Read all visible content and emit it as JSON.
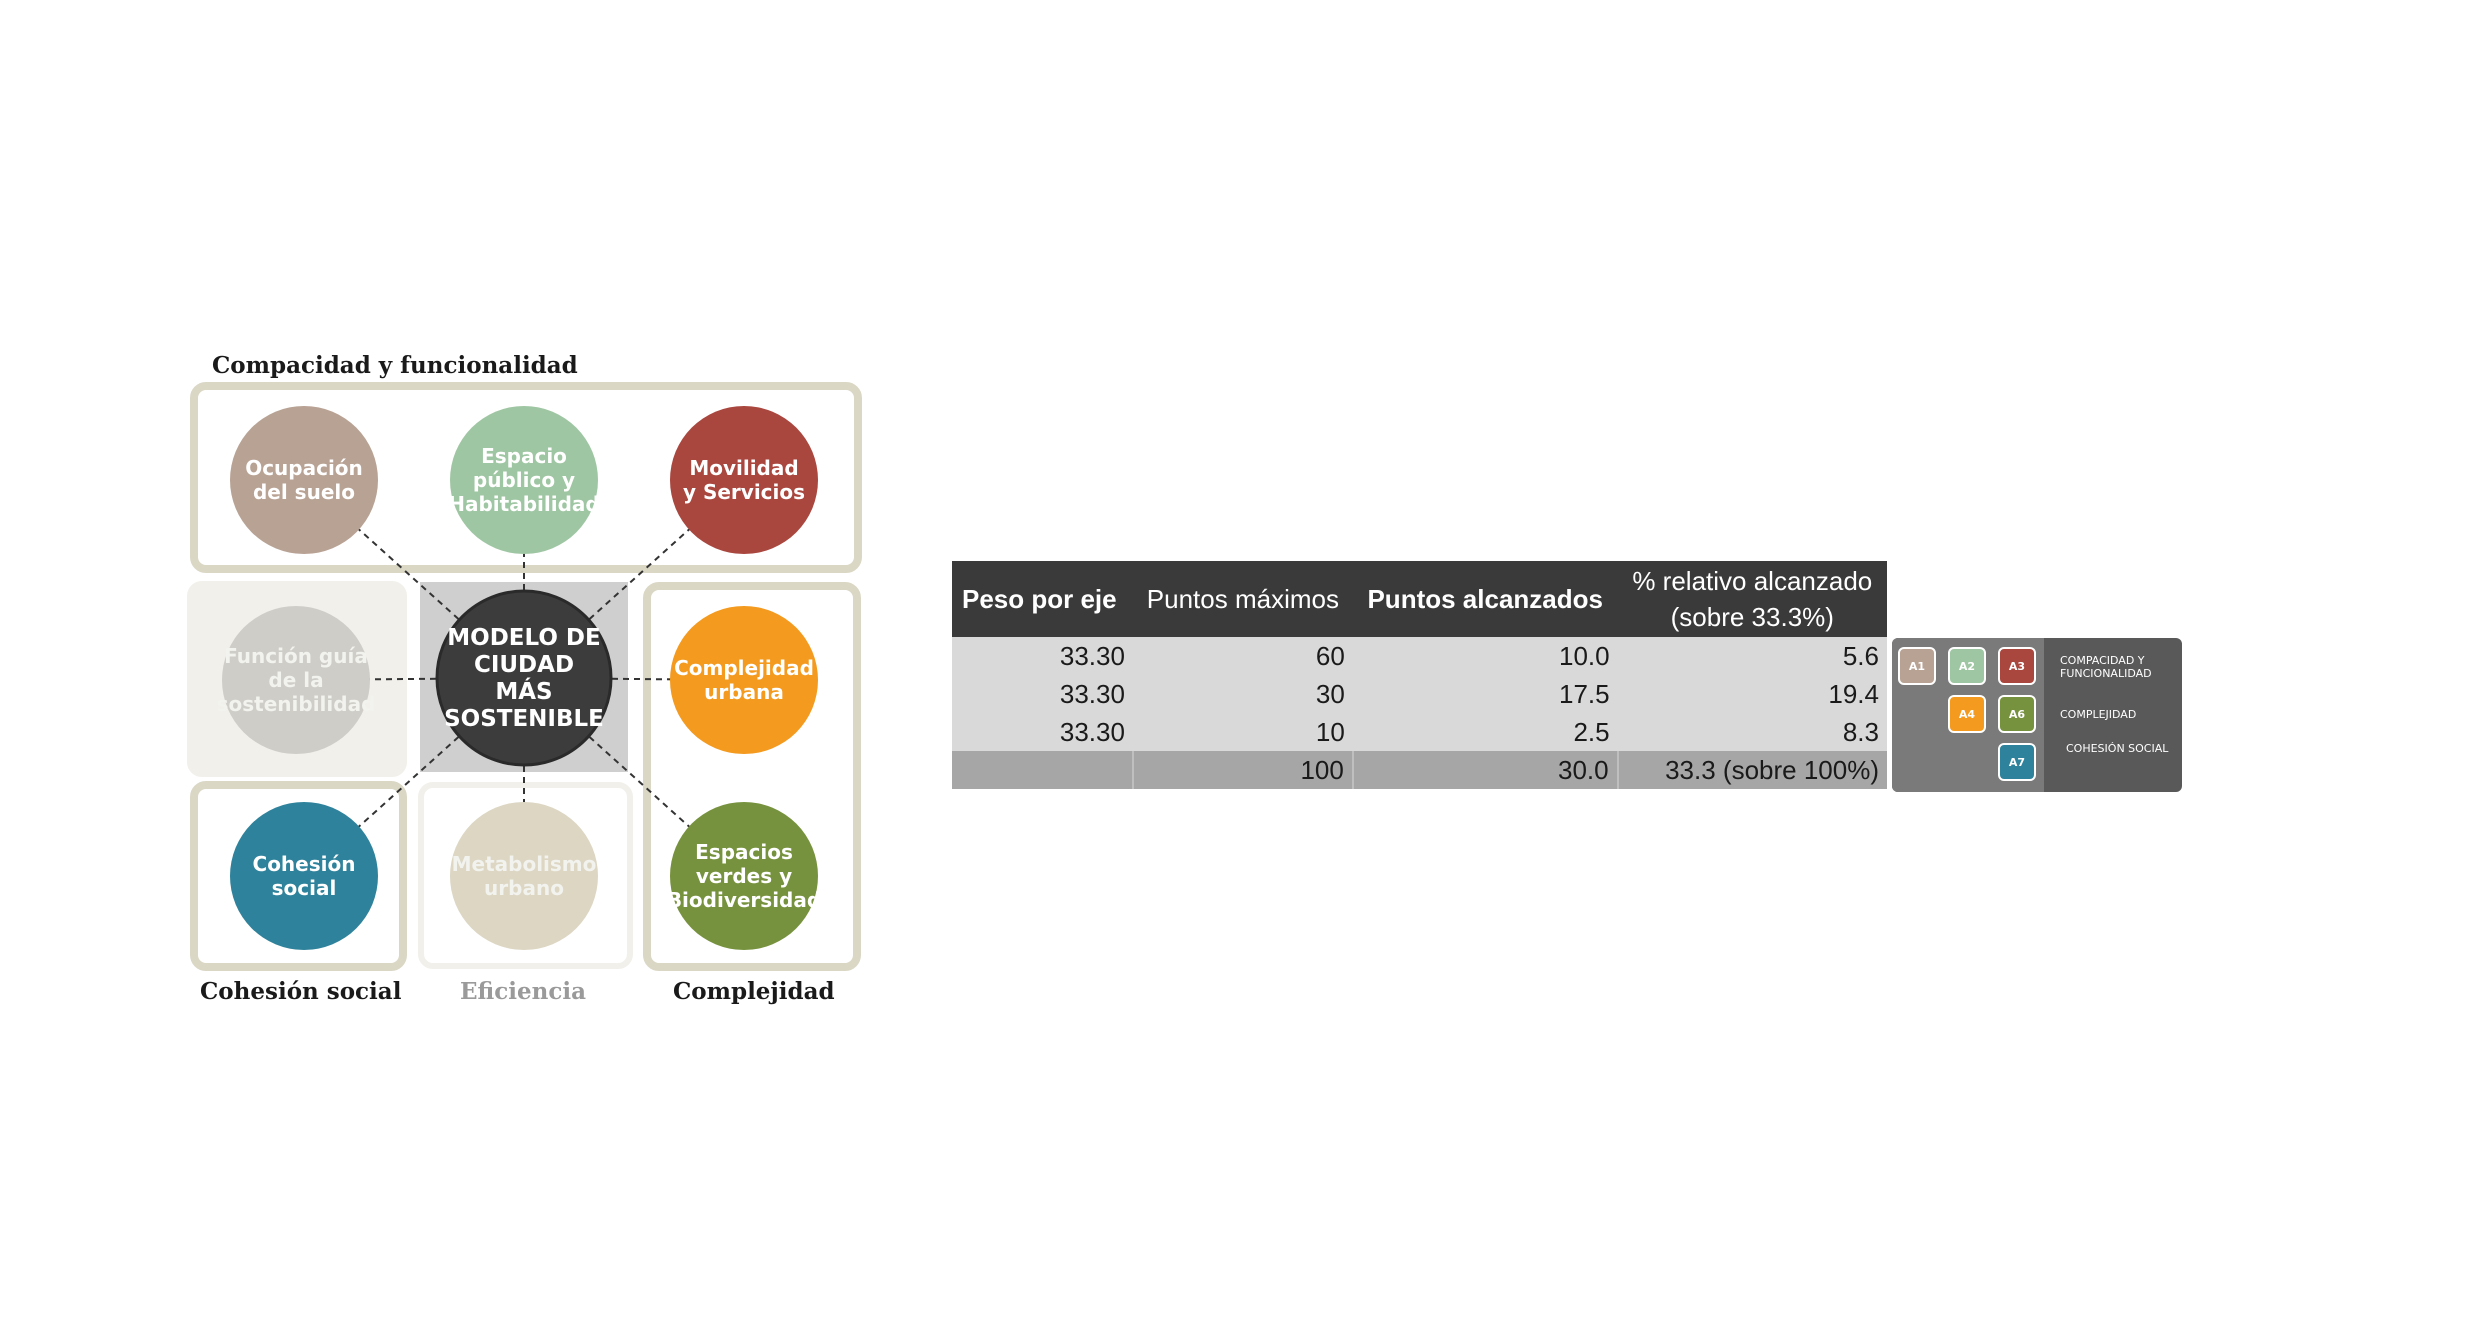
{
  "diagram": {
    "center": {
      "lines": [
        "MODELO DE",
        "CIUDAD",
        "MÁS",
        "SOSTENIBLE"
      ]
    },
    "nodes": [
      {
        "id": "ocupacion",
        "lines": [
          "Ocupación",
          "del suelo"
        ],
        "color": "#b8a294"
      },
      {
        "id": "espacio",
        "lines": [
          "Espacio",
          "público y",
          "Habitabilidad"
        ],
        "color": "#9fc6a3"
      },
      {
        "id": "movilidad",
        "lines": [
          "Movilidad",
          "y Servicios"
        ],
        "color": "#a9463e"
      },
      {
        "id": "funcion",
        "lines": [
          "Función guía",
          "de la",
          "sostenibilidad"
        ],
        "color": "#cfcdc7"
      },
      {
        "id": "complejidad",
        "lines": [
          "Complejidad",
          "urbana"
        ],
        "color": "#f39a1f"
      },
      {
        "id": "cohesion",
        "lines": [
          "Cohesión",
          "social"
        ],
        "color": "#2f829b"
      },
      {
        "id": "metabolismo",
        "lines": [
          "Metabolismo",
          "urbano"
        ],
        "color": "#dcd6c3"
      },
      {
        "id": "espacios-verdes",
        "lines": [
          "Espacios",
          "verdes y",
          "Biodiversidad"
        ],
        "color": "#77923e"
      }
    ],
    "groups": {
      "compacidad": "Compacidad y funcionalidad",
      "cohesion": "Cohesión social",
      "eficiencia": "Eficiencia",
      "complejidad": "Complejidad"
    }
  },
  "table": {
    "headers": [
      "Peso por eje",
      "Puntos máximos",
      "Puntos alcanzados",
      "% relativo alcanzado",
      "(sobre 33.3%)"
    ],
    "rows": [
      [
        "33.30",
        "60",
        "10.0",
        "5.6"
      ],
      [
        "33.30",
        "30",
        "17.5",
        "19.4"
      ],
      [
        "33.30",
        "10",
        "2.5",
        "8.3"
      ]
    ],
    "total": [
      "",
      "100",
      "30.0",
      "33.3 (sobre 100%)"
    ]
  },
  "legend": {
    "boxes": [
      {
        "label": "A1",
        "color": "#b8a294"
      },
      {
        "label": "A2",
        "color": "#9fc6a3"
      },
      {
        "label": "A3",
        "color": "#a9463e"
      },
      {
        "label": "A4",
        "color": "#f39a1f"
      },
      {
        "label": "A6",
        "color": "#77923e"
      },
      {
        "label": "A7",
        "color": "#2f829b"
      }
    ],
    "items": [
      "Compacidad y funcionalidad",
      "Complejidad",
      "Cohesión social"
    ]
  }
}
